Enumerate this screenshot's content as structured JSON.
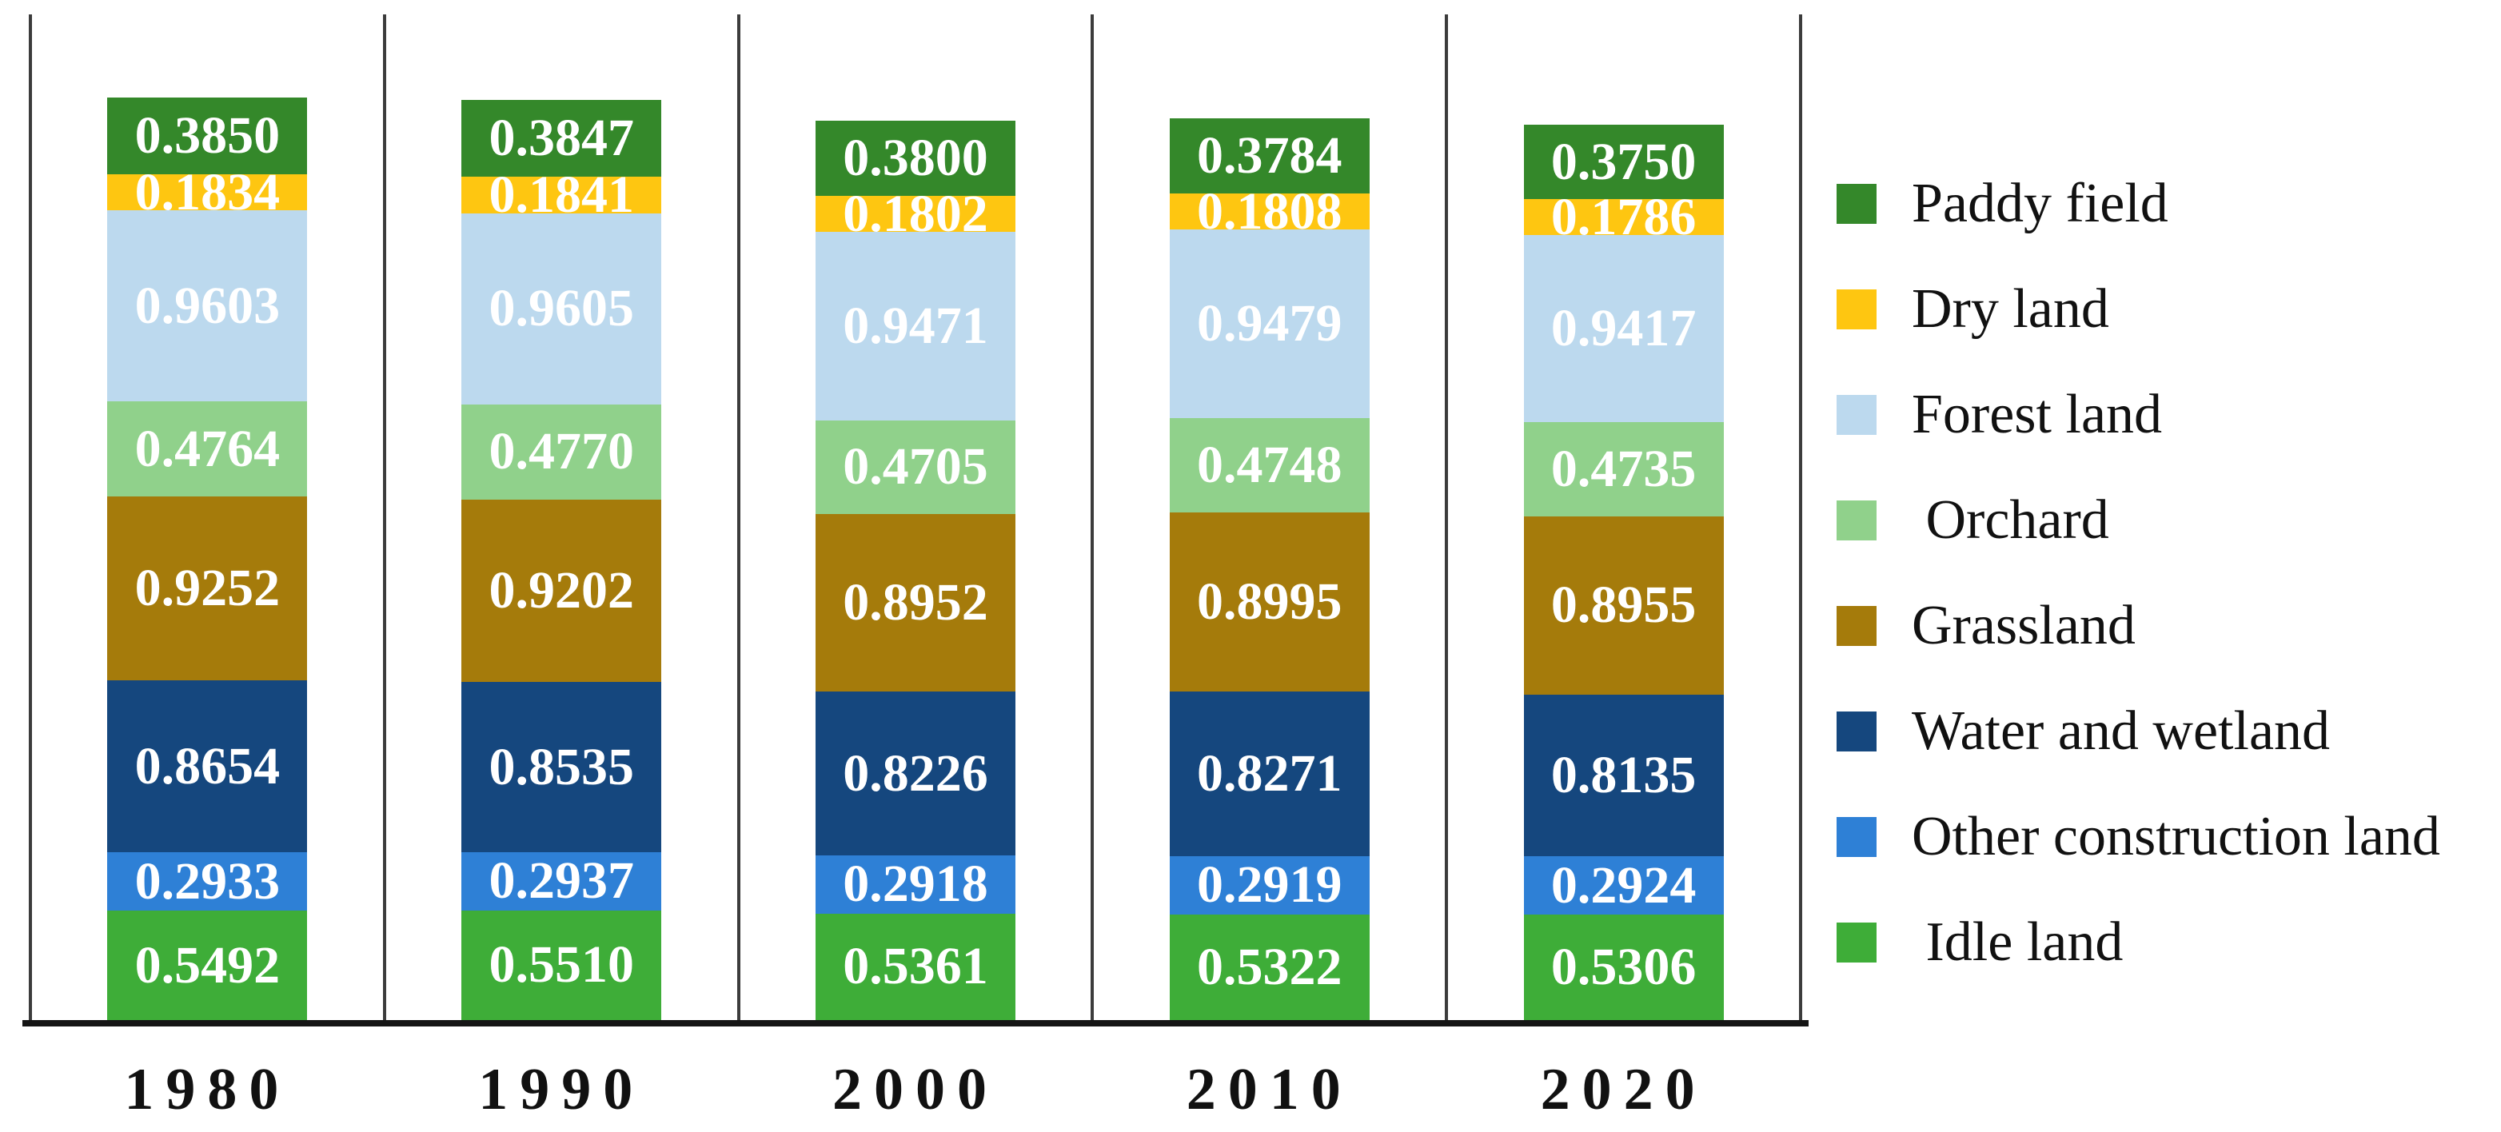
{
  "chart_data": {
    "type": "bar",
    "stacked": true,
    "title": "",
    "xlabel": "",
    "ylabel": "",
    "grid": "vertical-panel-dividers",
    "legend_position": "right",
    "value_labels_shown": true,
    "value_label_color": "#ffffff",
    "axis_color": "#151515",
    "divider_color": "#3c3c3c",
    "categories": [
      "1980",
      "1990",
      "2000",
      "2010",
      "2020"
    ],
    "series": [
      {
        "name": "Paddy field",
        "legend_label": "Paddy field",
        "color": "#34882A",
        "values": [
          "0.3850",
          "0.3847",
          "0.3800",
          "0.3784",
          "0.3750"
        ]
      },
      {
        "name": "Dry land",
        "legend_label": "Dry land",
        "color": "#FEC611",
        "values": [
          "0.1834",
          "0.1841",
          "0.1802",
          "0.1808",
          "0.1786"
        ]
      },
      {
        "name": "Forest land",
        "legend_label": "Forest land",
        "color": "#BCD9EE",
        "values": [
          "0.9603",
          "0.9605",
          "0.9471",
          "0.9479",
          "0.9417"
        ]
      },
      {
        "name": "Orchard",
        "legend_label": " Orchard",
        "color": "#90D18B",
        "values": [
          "0.4764",
          "0.4770",
          "0.4705",
          "0.4748",
          "0.4735"
        ]
      },
      {
        "name": "Grassland",
        "legend_label": "Grassland",
        "color": "#A57B0B",
        "values": [
          "0.9252",
          "0.9202",
          "0.8952",
          "0.8995",
          "0.8955"
        ]
      },
      {
        "name": "Water and wetland",
        "legend_label": "Water and wetland",
        "color": "#15477E",
        "values": [
          "0.8654",
          "0.8535",
          "0.8226",
          "0.8271",
          "0.8135"
        ]
      },
      {
        "name": "Other construction land",
        "legend_label": "Other construction land",
        "color": "#2E80D6",
        "values": [
          "0.2933",
          "0.2937",
          "0.2918",
          "0.2919",
          "0.2924"
        ]
      },
      {
        "name": "Idle land",
        "legend_label": " Idle land",
        "color": "#3EAD38",
        "values": [
          "0.5492",
          "0.5510",
          "0.5361",
          "0.5322",
          "0.5306"
        ]
      }
    ]
  }
}
